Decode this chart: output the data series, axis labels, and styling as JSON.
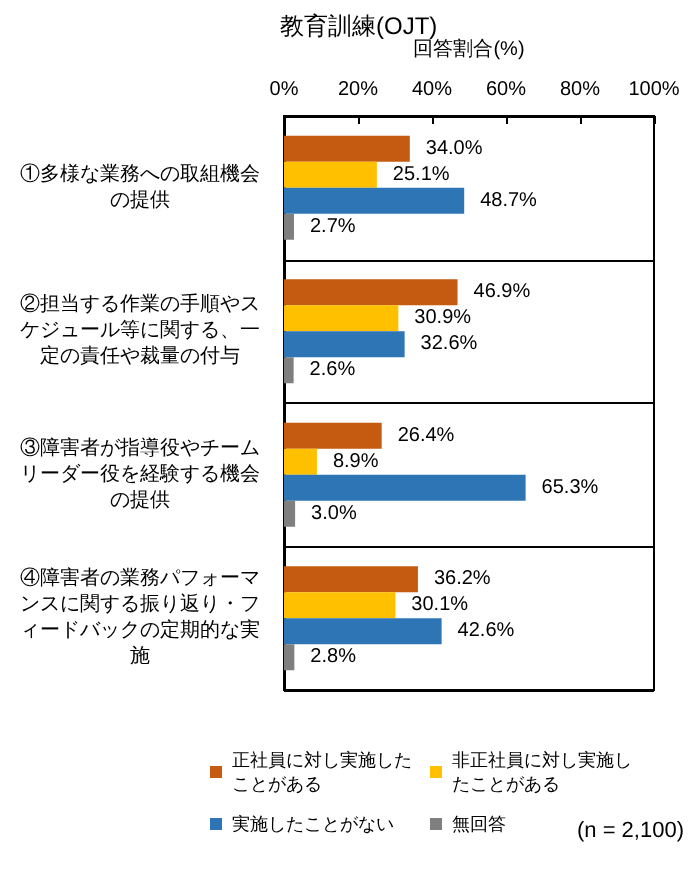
{
  "chart_data": {
    "type": "bar",
    "orientation": "horizontal",
    "title": "教育訓練(OJT)",
    "xlabel": "回答割合(%)",
    "categories": [
      "①多様な業務への取組機会の提供",
      "②担当する作業の手順やスケジュール等に関する、一定の責任や裁量の付与",
      "③障害者が指導役やチームリーダー役を経験する機会の提供",
      "④障害者の業務パフォーマンスに関する振り返り・フィードバックの定期的な実施"
    ],
    "series": [
      {
        "name": "正社員に対し実施したことがある",
        "color": "#c55a11",
        "values": [
          34.0,
          46.9,
          26.4,
          36.2
        ],
        "value_labels": [
          "34.0%",
          "46.9%",
          "26.4%",
          "36.2%"
        ]
      },
      {
        "name": "非正社員に対し実施したことがある",
        "color": "#ffc000",
        "values": [
          25.1,
          30.9,
          8.9,
          30.1
        ],
        "value_labels": [
          "25.1%",
          "30.9%",
          "8.9%",
          "30.1%"
        ]
      },
      {
        "name": "実施したことがない",
        "color": "#2e75b6",
        "values": [
          48.7,
          32.6,
          65.3,
          42.6
        ],
        "value_labels": [
          "48.7%",
          "32.6%",
          "65.3%",
          "42.6%"
        ]
      },
      {
        "name": "無回答",
        "color": "#7f7f7f",
        "values": [
          2.7,
          2.6,
          3.0,
          2.8
        ],
        "value_labels": [
          "2.7%",
          "2.6%",
          "3.0%",
          "2.8%"
        ]
      }
    ],
    "xlim": [
      0,
      100
    ],
    "xticks": [
      {
        "value": 0,
        "label": "0%"
      },
      {
        "value": 20,
        "label": "20%"
      },
      {
        "value": 40,
        "label": "40%"
      },
      {
        "value": 60,
        "label": "60%"
      },
      {
        "value": 80,
        "label": "80%"
      },
      {
        "value": 100,
        "label": "100%"
      }
    ],
    "grid": "y",
    "legend": "bottom",
    "annotations": [
      "(n = 2,100)"
    ]
  }
}
